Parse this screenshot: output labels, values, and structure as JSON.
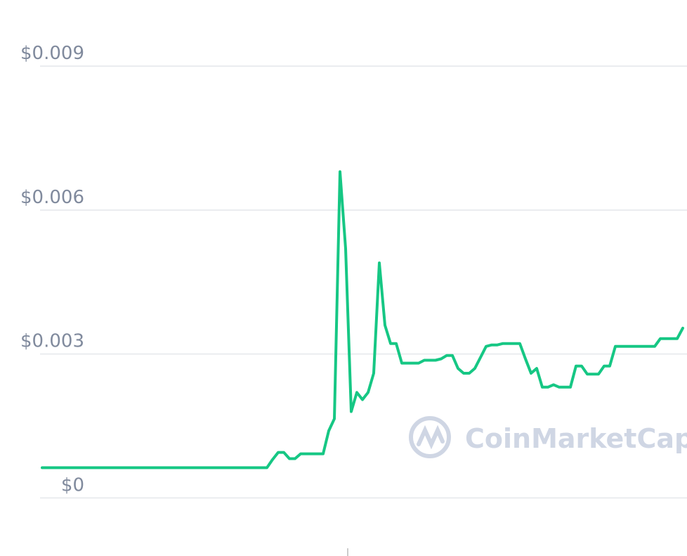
{
  "chart_data": {
    "type": "line",
    "watermark": "CoinMarketCap",
    "ylim": [
      -0.00121,
      0.01038
    ],
    "yticks": [
      {
        "value": 0,
        "label": "$0"
      },
      {
        "value": 0.003,
        "label": "$0.003"
      },
      {
        "value": 0.006,
        "label": "$0.006"
      },
      {
        "value": 0.009,
        "label": "$0.009"
      }
    ],
    "grid": true,
    "color": "#16c784",
    "values": [
      0.00063,
      0.00063,
      0.00063,
      0.00063,
      0.00063,
      0.00063,
      0.00063,
      0.00063,
      0.00063,
      0.00063,
      0.00063,
      0.00063,
      0.00063,
      0.00063,
      0.00063,
      0.00063,
      0.00063,
      0.00063,
      0.00063,
      0.00063,
      0.00063,
      0.00063,
      0.00063,
      0.00063,
      0.00063,
      0.00063,
      0.00063,
      0.00063,
      0.00063,
      0.00063,
      0.00063,
      0.00063,
      0.00063,
      0.00063,
      0.00063,
      0.00063,
      0.00063,
      0.00063,
      0.00063,
      0.00063,
      0.00063,
      0.0008,
      0.00095,
      0.00095,
      0.00082,
      0.00082,
      0.00092,
      0.00092,
      0.00092,
      0.00092,
      0.00092,
      0.0014,
      0.00165,
      0.0068,
      0.0052,
      0.0018,
      0.0022,
      0.00205,
      0.0022,
      0.0026,
      0.0049,
      0.0036,
      0.00322,
      0.00322,
      0.00281,
      0.00281,
      0.00281,
      0.00281,
      0.00287,
      0.00287,
      0.00287,
      0.0029,
      0.00297,
      0.00297,
      0.0027,
      0.0026,
      0.0026,
      0.0027,
      0.00293,
      0.00316,
      0.00319,
      0.00319,
      0.00322,
      0.00322,
      0.00322,
      0.00322,
      0.0029,
      0.0026,
      0.0027,
      0.00231,
      0.00231,
      0.00236,
      0.00231,
      0.00231,
      0.00231,
      0.00275,
      0.00275,
      0.00258,
      0.00258,
      0.00258,
      0.00275,
      0.00275,
      0.00316,
      0.00316,
      0.00316,
      0.00316,
      0.00316,
      0.00316,
      0.00316,
      0.00316,
      0.00332,
      0.00332,
      0.00332,
      0.00332,
      0.00354
    ]
  }
}
